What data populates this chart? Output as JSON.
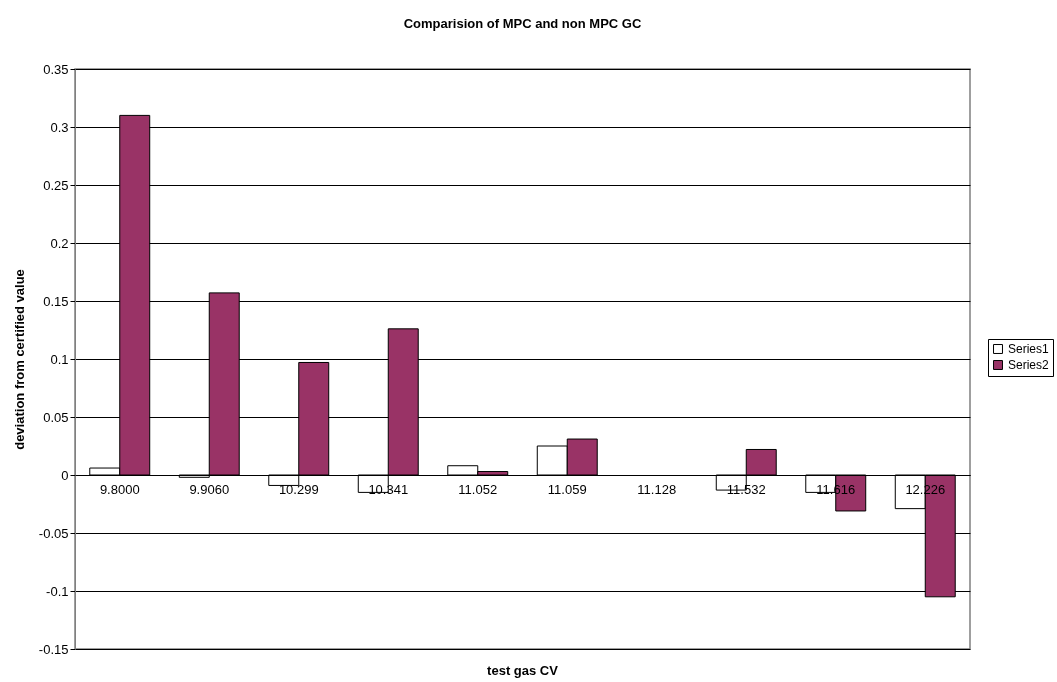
{
  "chart_data": {
    "type": "bar",
    "title": "Comparision of MPC and non MPC GC",
    "xlabel": "test gas CV",
    "ylabel": "deviation from certified value",
    "categories": [
      "9.8000",
      "9.9060",
      "10.299",
      "10.341",
      "11.052",
      "11.059",
      "11.128",
      "11.532",
      "11.616",
      "12.226"
    ],
    "series": [
      {
        "name": "Series1",
        "color": "#ffffff",
        "values": [
          0.006,
          -0.002,
          -0.009,
          -0.015,
          0.008,
          0.025,
          null,
          -0.013,
          -0.015,
          -0.029
        ]
      },
      {
        "name": "Series2",
        "color": "#993366",
        "values": [
          0.31,
          0.157,
          0.097,
          0.126,
          0.003,
          0.031,
          null,
          0.022,
          -0.031,
          -0.105
        ]
      }
    ],
    "ylim": [
      -0.15,
      0.35
    ],
    "yticks": [
      -0.15,
      -0.1,
      -0.05,
      0,
      0.05,
      0.1,
      0.15,
      0.2,
      0.25,
      0.3,
      0.35
    ],
    "grid": "y",
    "legend": "right"
  }
}
